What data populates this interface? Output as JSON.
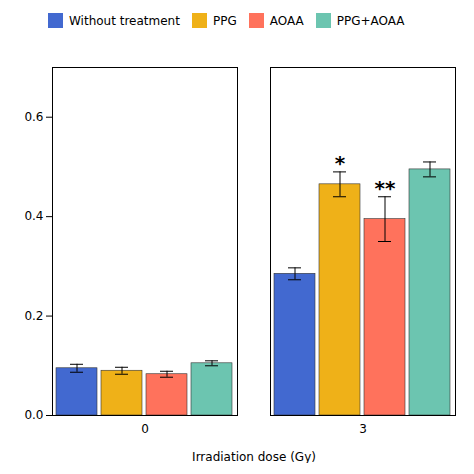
{
  "chart_data": {
    "type": "bar",
    "categories": [
      "0",
      "3"
    ],
    "series": [
      {
        "name": "Without treatment",
        "values": [
          0.095,
          0.285
        ],
        "errors": [
          0.008,
          0.012
        ]
      },
      {
        "name": "PPG",
        "values": [
          0.09,
          0.465
        ],
        "errors": [
          0.007,
          0.025
        ]
      },
      {
        "name": "AOAA",
        "values": [
          0.083,
          0.395
        ],
        "errors": [
          0.006,
          0.045
        ]
      },
      {
        "name": "PPG+AOAA",
        "values": [
          0.105,
          0.495
        ],
        "errors": [
          0.005,
          0.015
        ]
      }
    ],
    "xlabel": "Irradiation dose (Gy)",
    "ylim": [
      0,
      0.7
    ],
    "yticks": [
      {
        "value": 0.0,
        "label": "0.0"
      },
      0.2,
      0.4,
      0.6
    ],
    "annotations": [
      {
        "text": "*",
        "category": "3",
        "series": "PPG"
      },
      {
        "text": "**",
        "category": "3",
        "series": "AOAA"
      }
    ],
    "legend": "upper left",
    "grid": false
  }
}
